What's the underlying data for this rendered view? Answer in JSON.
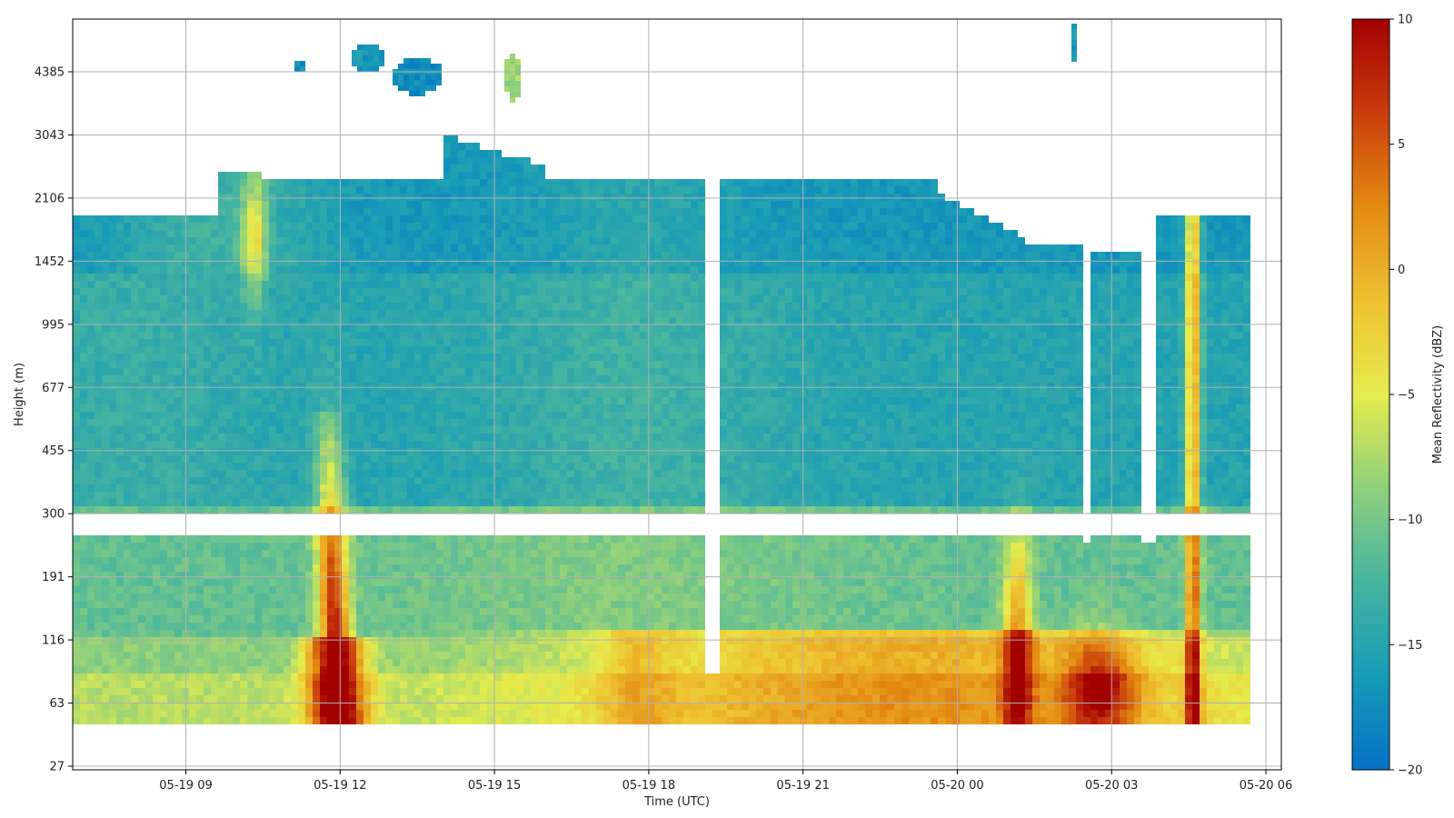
{
  "chart_data": {
    "type": "heatmap",
    "title": "",
    "xlabel": "Time (UTC)",
    "ylabel": "Height (m)",
    "x_ticks": [
      "05-19 09",
      "05-19 12",
      "05-19 15",
      "05-19 18",
      "05-19 21",
      "05-20 00",
      "05-20 03",
      "05-20 06"
    ],
    "x_tick_hours": [
      9,
      12,
      15,
      18,
      21,
      24,
      27,
      30
    ],
    "x_range_hours": [
      6.8,
      30.3
    ],
    "y_ticks": [
      "4385",
      "3043",
      "2106",
      "1452",
      "995",
      "677",
      "455",
      "300",
      "191",
      "116",
      "63",
      "27"
    ],
    "grid": true,
    "colorbar": {
      "label": "Mean Reflectivity (dBZ)",
      "min": -20,
      "max": 10,
      "ticks": [
        "10",
        "5",
        "0",
        "−5",
        "−10",
        "−15",
        "−20"
      ],
      "tick_values": [
        10,
        5,
        0,
        -5,
        -10,
        -15,
        -20
      ],
      "colormap": [
        "#0571c4",
        "#179bb7",
        "#46b4a0",
        "#8fd07c",
        "#e6ec4e",
        "#eec132",
        "#e38b13",
        "#c93d0c",
        "#a30000"
      ]
    },
    "features": [
      {
        "name": "low-level echo 05-19 12",
        "time_hour": 11.8,
        "max_dbz": 8
      },
      {
        "name": "surface echo 05-19 18 to 05-20 04",
        "time_hours": [
          16.5,
          28.5
        ],
        "max_dbz": 2
      },
      {
        "name": "column echo 05-20 05",
        "time_hour": 29.0,
        "max_dbz": 6
      },
      {
        "name": "upper cloud 05-19 13",
        "time_hour": 13.2,
        "max_dbz": -17
      },
      {
        "name": "upper echo 05-19 15",
        "time_hour": 15.5,
        "max_dbz": -7
      }
    ]
  }
}
